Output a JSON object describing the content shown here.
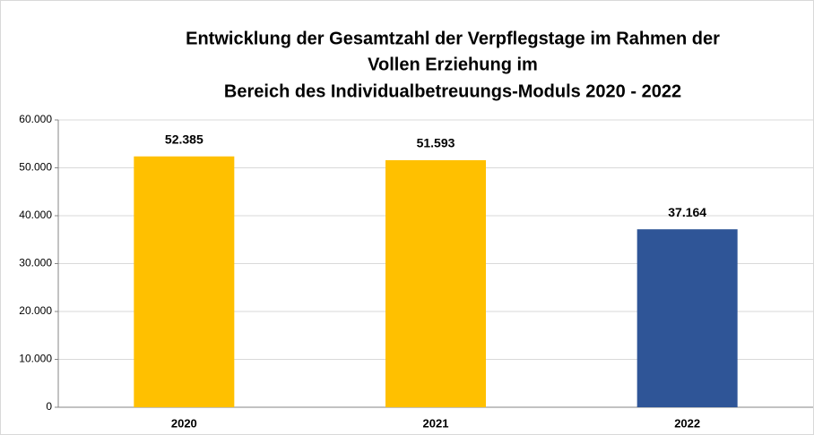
{
  "chart_data": {
    "type": "bar",
    "title": [
      "Entwicklung der Gesamtzahl der Verpflegstage im Rahmen der",
      "Vollen Erziehung im",
      "Bereich des Individualbetreuungs-Moduls 2020 - 2022"
    ],
    "categories": [
      "2020",
      "2021",
      "2022"
    ],
    "values": [
      52385,
      51593,
      37164
    ],
    "value_labels": [
      "52.385",
      "51.593",
      "37.164"
    ],
    "colors": [
      "#ffc000",
      "#ffc000",
      "#2f5597"
    ],
    "ylim": [
      0,
      60000
    ],
    "yticks": [
      0,
      {
        "value": 10000,
        "label": "10.000"
      },
      {
        "value": 20000,
        "label": "20.000"
      },
      {
        "value": 30000,
        "label": "30.000"
      },
      {
        "value": 40000,
        "label": "40.000"
      },
      {
        "value": 50000,
        "label": "50.000"
      },
      {
        "value": 60000,
        "label": "60.000"
      }
    ],
    "grid": true
  }
}
